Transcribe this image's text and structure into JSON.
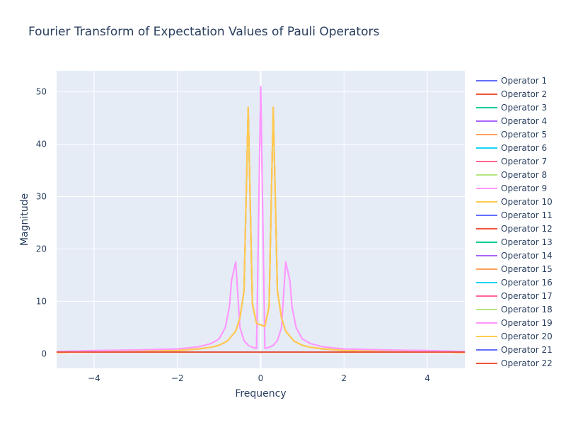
{
  "chart_data": {
    "type": "line",
    "title": "Fourier Transform of Expectation Values of Pauli Operators",
    "xlabel": "Frequency",
    "ylabel": "Magnitude",
    "xlim": [
      -4.9,
      4.9
    ],
    "ylim": [
      -2.8,
      54
    ],
    "xticks": [
      -4,
      -2,
      0,
      2,
      4
    ],
    "yticks": [
      0,
      10,
      20,
      30,
      40,
      50
    ],
    "grid": true,
    "legend_position": "right",
    "colors": [
      "#636efa",
      "#ef553b",
      "#00cc96",
      "#ab63fa",
      "#ffa15a",
      "#19d3f3",
      "#ff6692",
      "#b6e880",
      "#ff97ff",
      "#fecb52"
    ],
    "series": [
      {
        "name": "Operator 1",
        "x": [
          -4.9,
          4.9
        ],
        "y": [
          0.3,
          0.3
        ]
      },
      {
        "name": "Operator 2",
        "x": [
          -4.9,
          4.9
        ],
        "y": [
          0.3,
          0.3
        ]
      },
      {
        "name": "Operator 3",
        "x": [
          -4.9,
          4.9
        ],
        "y": [
          0.3,
          0.3
        ]
      },
      {
        "name": "Operator 4",
        "x": [
          -4.9,
          4.9
        ],
        "y": [
          0.3,
          0.3
        ]
      },
      {
        "name": "Operator 5",
        "x": [
          -4.9,
          -4.0,
          -3.0,
          -2.0,
          -1.5,
          -1.2,
          -1.0,
          -0.8,
          -0.6,
          -0.5,
          -0.4,
          -0.3,
          -0.2,
          -0.1,
          0.1,
          0.2,
          0.3,
          0.4,
          0.5,
          0.6,
          0.8,
          1.0,
          1.2,
          1.5,
          2.0,
          3.0,
          4.0,
          4.9
        ],
        "y": [
          0.2,
          0.3,
          0.4,
          0.6,
          0.9,
          1.2,
          1.6,
          2.4,
          4.3,
          6.8,
          12.0,
          47.0,
          9.5,
          5.8,
          5.2,
          9.0,
          47.0,
          12.0,
          6.8,
          4.3,
          2.4,
          1.6,
          1.2,
          0.9,
          0.6,
          0.4,
          0.3,
          0.2
        ]
      },
      {
        "name": "Operator 6",
        "x": [
          -4.9,
          4.9
        ],
        "y": [
          0.3,
          0.3
        ]
      },
      {
        "name": "Operator 7",
        "x": [
          -4.9,
          4.9
        ],
        "y": [
          0.3,
          0.3
        ]
      },
      {
        "name": "Operator 8",
        "x": [
          -4.9,
          4.9
        ],
        "y": [
          0.3,
          0.3
        ]
      },
      {
        "name": "Operator 9",
        "x": [
          -4.9,
          -4.0,
          -3.0,
          -2.0,
          -1.5,
          -1.2,
          -1.0,
          -0.85,
          -0.75,
          -0.7,
          -0.6,
          -0.5,
          -0.4,
          -0.3,
          -0.2,
          -0.1,
          0.0,
          0.1,
          0.2,
          0.3,
          0.4,
          0.5,
          0.6,
          0.7,
          0.75,
          0.85,
          1.0,
          1.2,
          1.5,
          2.0,
          3.0,
          4.0,
          4.9
        ],
        "y": [
          0.4,
          0.6,
          0.7,
          0.9,
          1.3,
          1.9,
          2.8,
          5.0,
          9.0,
          14.0,
          17.5,
          5.0,
          2.5,
          1.6,
          1.2,
          1.0,
          51.0,
          1.0,
          1.2,
          1.6,
          2.5,
          5.0,
          17.5,
          14.0,
          9.0,
          5.0,
          2.8,
          1.9,
          1.3,
          0.9,
          0.7,
          0.6,
          0.4
        ]
      },
      {
        "name": "Operator 10",
        "x": [
          -4.9,
          -4.0,
          -3.0,
          -2.0,
          -1.5,
          -1.2,
          -1.0,
          -0.8,
          -0.6,
          -0.5,
          -0.4,
          -0.3,
          -0.2,
          -0.1,
          0.1,
          0.2,
          0.3,
          0.4,
          0.5,
          0.6,
          0.8,
          1.0,
          1.2,
          1.5,
          2.0,
          3.0,
          4.0,
          4.9
        ],
        "y": [
          0.2,
          0.3,
          0.4,
          0.6,
          0.9,
          1.2,
          1.6,
          2.4,
          4.3,
          6.8,
          12.0,
          47.0,
          9.5,
          5.8,
          5.2,
          9.0,
          47.0,
          12.0,
          6.8,
          4.3,
          2.4,
          1.6,
          1.2,
          0.9,
          0.6,
          0.4,
          0.3,
          0.2
        ]
      },
      {
        "name": "Operator 11",
        "x": [
          -4.9,
          4.9
        ],
        "y": [
          0.3,
          0.3
        ]
      },
      {
        "name": "Operator 12",
        "x": [
          -4.9,
          4.9
        ],
        "y": [
          0.3,
          0.3
        ]
      },
      {
        "name": "Operator 13",
        "x": [
          -4.9,
          4.9
        ],
        "y": [
          0.3,
          0.3
        ]
      },
      {
        "name": "Operator 14",
        "x": [
          -4.9,
          4.9
        ],
        "y": [
          0.3,
          0.3
        ]
      },
      {
        "name": "Operator 15",
        "x": [
          -4.9,
          -4.0,
          -3.0,
          -2.0,
          -1.5,
          -1.2,
          -1.0,
          -0.8,
          -0.6,
          -0.5,
          -0.4,
          -0.3,
          -0.2,
          -0.1,
          0.1,
          0.2,
          0.3,
          0.4,
          0.5,
          0.6,
          0.8,
          1.0,
          1.2,
          1.5,
          2.0,
          3.0,
          4.0,
          4.9
        ],
        "y": [
          0.2,
          0.3,
          0.4,
          0.6,
          0.9,
          1.2,
          1.6,
          2.4,
          4.3,
          6.8,
          12.0,
          47.0,
          9.5,
          5.8,
          5.2,
          9.0,
          47.0,
          12.0,
          6.8,
          4.3,
          2.4,
          1.6,
          1.2,
          0.9,
          0.6,
          0.4,
          0.3,
          0.2
        ]
      },
      {
        "name": "Operator 16",
        "x": [
          -4.9,
          4.9
        ],
        "y": [
          0.3,
          0.3
        ]
      },
      {
        "name": "Operator 17",
        "x": [
          -4.9,
          4.9
        ],
        "y": [
          0.3,
          0.3
        ]
      },
      {
        "name": "Operator 18",
        "x": [
          -4.9,
          4.9
        ],
        "y": [
          0.3,
          0.3
        ]
      },
      {
        "name": "Operator 19",
        "x": [
          -4.9,
          -4.0,
          -3.0,
          -2.0,
          -1.5,
          -1.2,
          -1.0,
          -0.85,
          -0.75,
          -0.7,
          -0.6,
          -0.5,
          -0.4,
          -0.3,
          -0.2,
          -0.1,
          0.0,
          0.1,
          0.2,
          0.3,
          0.4,
          0.5,
          0.6,
          0.7,
          0.75,
          0.85,
          1.0,
          1.2,
          1.5,
          2.0,
          3.0,
          4.0,
          4.9
        ],
        "y": [
          0.4,
          0.6,
          0.7,
          0.9,
          1.3,
          1.9,
          2.8,
          5.0,
          9.0,
          14.0,
          17.5,
          5.0,
          2.5,
          1.6,
          1.2,
          1.0,
          51.0,
          1.0,
          1.2,
          1.6,
          2.5,
          5.0,
          17.5,
          14.0,
          9.0,
          5.0,
          2.8,
          1.9,
          1.3,
          0.9,
          0.7,
          0.6,
          0.4
        ]
      },
      {
        "name": "Operator 20",
        "x": [
          -4.9,
          -4.0,
          -3.0,
          -2.0,
          -1.5,
          -1.2,
          -1.0,
          -0.8,
          -0.6,
          -0.5,
          -0.4,
          -0.3,
          -0.2,
          -0.1,
          0.1,
          0.2,
          0.3,
          0.4,
          0.5,
          0.6,
          0.8,
          1.0,
          1.2,
          1.5,
          2.0,
          3.0,
          4.0,
          4.9
        ],
        "y": [
          0.2,
          0.3,
          0.4,
          0.6,
          0.9,
          1.2,
          1.6,
          2.4,
          4.3,
          6.8,
          12.0,
          47.0,
          9.5,
          5.8,
          5.2,
          9.0,
          47.0,
          12.0,
          6.8,
          4.3,
          2.4,
          1.6,
          1.2,
          0.9,
          0.6,
          0.4,
          0.3,
          0.2
        ]
      },
      {
        "name": "Operator 21",
        "x": [
          -4.9,
          4.9
        ],
        "y": [
          0.3,
          0.3
        ]
      },
      {
        "name": "Operator 22",
        "x": [
          -4.9,
          4.9
        ],
        "y": [
          0.3,
          0.3
        ]
      }
    ]
  }
}
